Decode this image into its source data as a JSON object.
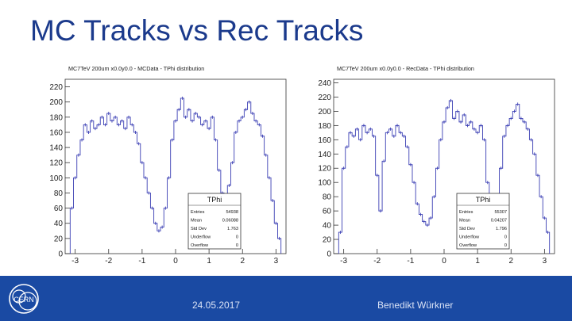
{
  "slide": {
    "title": "MC Tracks vs Rec Tracks",
    "date": "24.05.2017",
    "author": "Benedikt Würkner",
    "logo_text": "CERN"
  },
  "colors": {
    "accent": "#1a4aa3",
    "title": "#1b3a8c",
    "series": "#3b3fb4"
  },
  "chart_data": [
    {
      "type": "histogram",
      "title": "MC7TeV 200um x0.0y0.0 - MCData - TPhi distribution",
      "xlabel": "",
      "ylabel": "",
      "xlim": [
        -3.3,
        3.3
      ],
      "ylim": [
        0,
        230
      ],
      "xticks": [
        -3,
        -2,
        -1,
        0,
        1,
        2,
        3
      ],
      "xtick_labels": [
        "-3",
        "-2",
        "-1",
        "0",
        "1",
        "2",
        "3"
      ],
      "yticks": [
        0,
        20,
        40,
        60,
        80,
        100,
        120,
        140,
        160,
        180,
        200,
        220
      ],
      "x": [
        -3.1,
        -3.0,
        -2.9,
        -2.8,
        -2.7,
        -2.6,
        -2.5,
        -2.4,
        -2.3,
        -2.2,
        -2.1,
        -2.0,
        -1.9,
        -1.8,
        -1.7,
        -1.6,
        -1.5,
        -1.4,
        -1.3,
        -1.2,
        -1.1,
        -1.0,
        -0.9,
        -0.8,
        -0.7,
        -0.6,
        -0.5,
        -0.4,
        -0.3,
        -0.2,
        -0.1,
        0.0,
        0.1,
        0.2,
        0.3,
        0.4,
        0.5,
        0.6,
        0.7,
        0.8,
        0.9,
        1.0,
        1.1,
        1.2,
        1.3,
        1.4,
        1.5,
        1.6,
        1.7,
        1.8,
        1.9,
        2.0,
        2.1,
        2.2,
        2.3,
        2.4,
        2.5,
        2.6,
        2.7,
        2.8,
        2.9,
        3.0,
        3.1
      ],
      "values": [
        60,
        100,
        130,
        150,
        170,
        160,
        175,
        165,
        170,
        180,
        170,
        185,
        175,
        180,
        170,
        175,
        165,
        180,
        170,
        160,
        145,
        120,
        100,
        80,
        60,
        40,
        30,
        35,
        60,
        100,
        150,
        175,
        190,
        205,
        180,
        190,
        175,
        185,
        180,
        170,
        175,
        165,
        180,
        150,
        110,
        80,
        70,
        90,
        120,
        160,
        175,
        180,
        190,
        200,
        185,
        175,
        170,
        155,
        130,
        100,
        70,
        40,
        20
      ],
      "stats": {
        "name": "TPhi",
        "rows": [
          {
            "label": "Entries",
            "value": "54938"
          },
          {
            "label": "Mean",
            "value": "0.06088"
          },
          {
            "label": "Std Dev",
            "value": "1.763"
          },
          {
            "label": "Underflow",
            "value": "0"
          },
          {
            "label": "Overflow",
            "value": "0"
          }
        ]
      }
    },
    {
      "type": "histogram",
      "title": "MC7TeV 200um x0.0y0.0 - RecData - TPhi distribution",
      "xlabel": "",
      "ylabel": "",
      "xlim": [
        -3.3,
        3.3
      ],
      "ylim": [
        0,
        245
      ],
      "xticks": [
        -3,
        -2,
        -1,
        0,
        1,
        2,
        3
      ],
      "xtick_labels": [
        "-3",
        "-2",
        "-1",
        "0",
        "1",
        "2",
        "3"
      ],
      "yticks": [
        0,
        20,
        40,
        60,
        80,
        100,
        120,
        140,
        160,
        180,
        200,
        220,
        240
      ],
      "x": [
        -3.1,
        -3.0,
        -2.9,
        -2.8,
        -2.7,
        -2.6,
        -2.5,
        -2.4,
        -2.3,
        -2.2,
        -2.1,
        -2.0,
        -1.9,
        -1.8,
        -1.7,
        -1.6,
        -1.5,
        -1.4,
        -1.3,
        -1.2,
        -1.1,
        -1.0,
        -0.9,
        -0.8,
        -0.7,
        -0.6,
        -0.5,
        -0.4,
        -0.3,
        -0.2,
        -0.1,
        0.0,
        0.1,
        0.2,
        0.3,
        0.4,
        0.5,
        0.6,
        0.7,
        0.8,
        0.9,
        1.0,
        1.1,
        1.2,
        1.3,
        1.4,
        1.5,
        1.6,
        1.7,
        1.8,
        1.9,
        2.0,
        2.1,
        2.2,
        2.3,
        2.4,
        2.5,
        2.6,
        2.7,
        2.8,
        2.9,
        3.0,
        3.1
      ],
      "values": [
        30,
        120,
        150,
        170,
        165,
        175,
        160,
        180,
        170,
        175,
        165,
        110,
        60,
        130,
        170,
        175,
        165,
        180,
        170,
        165,
        150,
        125,
        100,
        70,
        55,
        45,
        40,
        50,
        80,
        120,
        160,
        185,
        205,
        215,
        190,
        200,
        185,
        195,
        180,
        185,
        175,
        170,
        180,
        160,
        100,
        50,
        40,
        70,
        120,
        165,
        180,
        190,
        200,
        210,
        190,
        185,
        175,
        160,
        140,
        110,
        80,
        50,
        30
      ],
      "stats": {
        "name": "TPhi",
        "rows": [
          {
            "label": "Entries",
            "value": "55307"
          },
          {
            "label": "Mean",
            "value": "0.04207"
          },
          {
            "label": "Std Dev",
            "value": "1.796"
          },
          {
            "label": "Underflow",
            "value": "0"
          },
          {
            "label": "Overflow",
            "value": "0"
          }
        ]
      }
    }
  ]
}
